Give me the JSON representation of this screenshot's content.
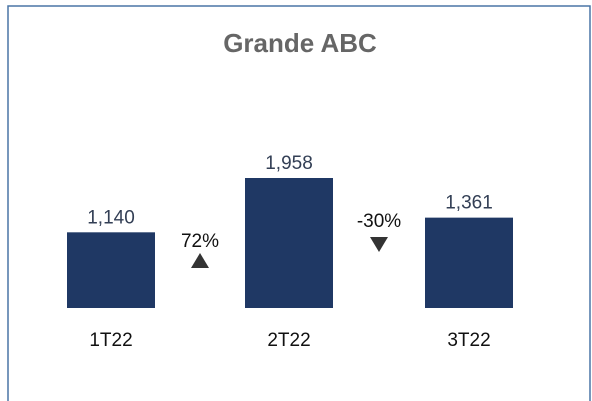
{
  "chart_data": {
    "type": "bar",
    "title": "Grande ABC",
    "categories": [
      "1T22",
      "2T22",
      "3T22"
    ],
    "values": [
      1140,
      1958,
      1361
    ],
    "value_labels": [
      "1,140",
      "1,958",
      "1,361"
    ],
    "color": "#1f3864",
    "annotations": [
      {
        "text": "72%",
        "direction": "up"
      },
      {
        "text": "-30%",
        "direction": "down"
      }
    ]
  }
}
